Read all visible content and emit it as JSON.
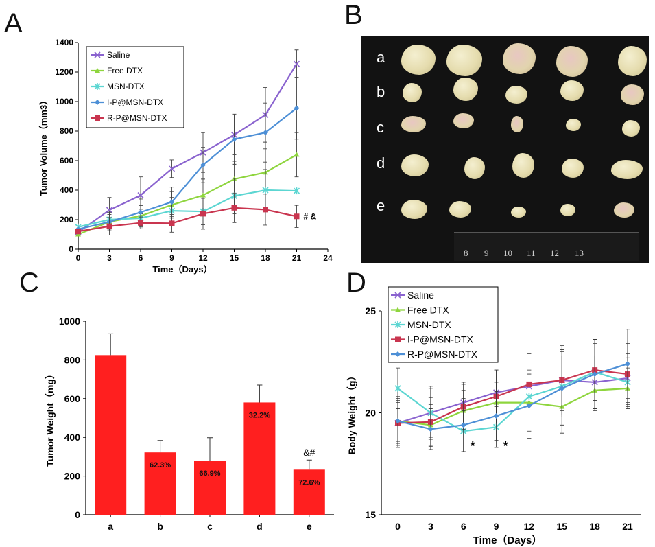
{
  "panels": {
    "a": "A",
    "b": "B",
    "c": "C",
    "d": "D"
  },
  "photo": {
    "row_labels": [
      "a",
      "b",
      "c",
      "d",
      "e"
    ],
    "ruler_numbers": [
      "8",
      "9",
      "10",
      "11",
      "12",
      "13"
    ]
  },
  "chart_data": [
    {
      "id": "A",
      "type": "line",
      "xlabel": "Time（Days）",
      "ylabel": "Tumor Volume（mm3）",
      "x": [
        0,
        3,
        6,
        9,
        12,
        15,
        18,
        21
      ],
      "xlim": [
        0,
        24
      ],
      "xticks": [
        "0",
        "3",
        "6",
        "9",
        "12",
        "15",
        "18",
        "21",
        "24"
      ],
      "ylim": [
        0,
        1400
      ],
      "yticks": [
        "0",
        "200",
        "400",
        "600",
        "800",
        "1000",
        "1200",
        "1400"
      ],
      "legend_position": "top-left",
      "series": [
        {
          "name": "Saline",
          "color": "#8a63cf",
          "marker": "x",
          "values": [
            115,
            265,
            365,
            545,
            655,
            775,
            910,
            1255
          ],
          "errors": [
            0,
            85,
            125,
            60,
            135,
            135,
            185,
            95
          ]
        },
        {
          "name": "Free DTX",
          "color": "#8ed53d",
          "marker": "triangle",
          "values": [
            100,
            185,
            225,
            300,
            365,
            475,
            520,
            640
          ],
          "errors": [
            0,
            50,
            70,
            90,
            110,
            120,
            160,
            150
          ]
        },
        {
          "name": "MSN-DTX",
          "color": "#5cd6d2",
          "marker": "star",
          "values": [
            150,
            200,
            210,
            260,
            255,
            360,
            400,
            395
          ],
          "errors": [
            0,
            50,
            60,
            90,
            90,
            120,
            140,
            0
          ]
        },
        {
          "name": "I-P@MSN-DTX",
          "color": "#4d8fd6",
          "marker": "diamond",
          "values": [
            135,
            185,
            250,
            320,
            570,
            745,
            790,
            955
          ],
          "errors": [
            0,
            60,
            90,
            100,
            120,
            170,
            200,
            210
          ]
        },
        {
          "name": "R-P@MSN-DTX",
          "color": "#c9354f",
          "marker": "square",
          "values": [
            120,
            155,
            178,
            175,
            240,
            280,
            268,
            222
          ],
          "errors": [
            0,
            60,
            40,
            60,
            105,
            100,
            105,
            75
          ]
        }
      ],
      "annotations": [
        {
          "text": "# &",
          "x": 21,
          "y": 222
        }
      ]
    },
    {
      "id": "C",
      "type": "bar",
      "ylabel": "Tumor Weight（mg）",
      "categories": [
        "a",
        "b",
        "c",
        "d",
        "e"
      ],
      "values": [
        825,
        322,
        280,
        580,
        233
      ],
      "errors": [
        110,
        62,
        118,
        90,
        50
      ],
      "bar_labels": [
        "",
        "62.3%",
        "66.9%",
        "32.2%",
        "72.6%"
      ],
      "ylim": [
        0,
        1000
      ],
      "yticks": [
        "0",
        "200",
        "400",
        "600",
        "800",
        "1000"
      ],
      "bar_color": "#ff1f1f",
      "annotations": [
        {
          "text": "&#",
          "category": "e"
        }
      ]
    },
    {
      "id": "D",
      "type": "line",
      "xlabel": "Time（Days）",
      "ylabel": "Body Weight（g）",
      "x": [
        0,
        3,
        6,
        9,
        12,
        15,
        18,
        21
      ],
      "xticks": [
        "0",
        "3",
        "6",
        "9",
        "12",
        "15",
        "18",
        "21"
      ],
      "ylim": [
        15,
        25
      ],
      "yticks": [
        "15",
        "20",
        "25"
      ],
      "legend_position": "top-left",
      "series": [
        {
          "name": "Saline",
          "color": "#8a63cf",
          "marker": "x",
          "values": [
            19.5,
            20.0,
            20.5,
            21.0,
            21.3,
            21.6,
            21.5,
            21.7
          ],
          "errors": [
            1.0,
            1.2,
            1.0,
            1.1,
            1.5,
            1.7,
            1.3,
            1.2
          ]
        },
        {
          "name": "Free DTX",
          "color": "#8ed53d",
          "marker": "triangle",
          "values": [
            19.6,
            19.4,
            20.1,
            20.5,
            20.5,
            20.3,
            21.1,
            21.2
          ],
          "errors": [
            1.0,
            1.0,
            1.0,
            1.0,
            1.4,
            1.3,
            1.0,
            1.0
          ]
        },
        {
          "name": "MSN-DTX",
          "color": "#5cd6d2",
          "marker": "star",
          "values": [
            21.2,
            20.0,
            19.1,
            19.3,
            20.8,
            21.3,
            22.0,
            21.5
          ],
          "errors": [
            1.0,
            1.3,
            1.0,
            1.0,
            1.3,
            1.5,
            1.4,
            1.2
          ]
        },
        {
          "name": "I-P@MSN-DTX",
          "color": "#c9354f",
          "marker": "square",
          "values": [
            19.5,
            19.55,
            20.3,
            20.8,
            21.4,
            21.6,
            22.1,
            21.9
          ],
          "errors": [
            1.2,
            1.2,
            1.1,
            1.3,
            1.5,
            1.5,
            1.5,
            1.5
          ]
        },
        {
          "name": "R-P@MSN-DTX",
          "color": "#4d8fd6",
          "marker": "diamond",
          "values": [
            19.6,
            19.2,
            19.4,
            19.85,
            20.35,
            21.2,
            21.9,
            22.4
          ],
          "errors": [
            1.2,
            1.0,
            1.3,
            1.2,
            1.6,
            1.8,
            1.7,
            1.7
          ]
        }
      ],
      "annotations": [
        {
          "text": "*",
          "x": 6
        },
        {
          "text": "*",
          "x": 9
        }
      ]
    }
  ]
}
